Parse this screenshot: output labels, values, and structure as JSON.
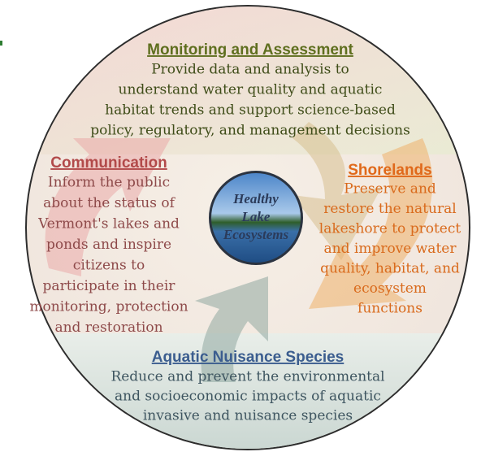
{
  "center": {
    "lines": [
      "Healthy",
      "Lake",
      "Ecosystems"
    ]
  },
  "sections": [
    {
      "title": "Monitoring and Assessment",
      "lines": [
        "Provide data and analysis to",
        "understand water quality and aquatic",
        "habitat trends and support science-based",
        "policy, regulatory, and management decisions"
      ]
    },
    {
      "title": "Communication",
      "lines": [
        "Inform the public",
        "about the status of",
        "Vermont's lakes and",
        "ponds and inspire",
        "citizens to",
        "participate in their",
        "monitoring, protection",
        "and restoration"
      ]
    },
    {
      "title": "Shorelands",
      "lines": [
        "Preserve and",
        "restore the natural",
        "lakeshore to protect",
        "and improve water",
        "quality, habitat, and",
        "ecosystem",
        "functions"
      ]
    },
    {
      "title": "Aquatic Nuisance Species",
      "lines": [
        "Reduce and prevent the environmental",
        "and socioeconomic impacts of aquatic",
        "invasive and nuisance species"
      ]
    }
  ]
}
